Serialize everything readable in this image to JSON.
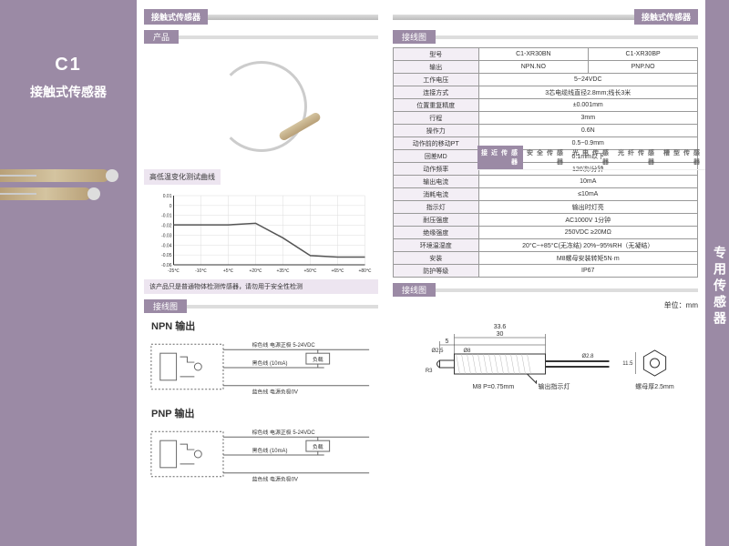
{
  "left": {
    "code": "C1",
    "title": "接触式传感器"
  },
  "side": {
    "tab_title": "专用传感器",
    "menu": [
      "槽型传感器",
      "光纤传感器",
      "光电传感器",
      "安全传感器",
      "接近传感器"
    ],
    "active": 4
  },
  "mid": {
    "pageHeader": "接触式传感器",
    "sections": {
      "product": "产品",
      "wiring": "接线图"
    },
    "chartCaption": "高低温变化测试曲线",
    "chart": {
      "x_ticks": [
        "-25℃",
        "-10℃",
        "+5℃",
        "+20℃",
        "+35℃",
        "+50℃",
        "+65℃",
        "+80℃"
      ],
      "y_ticks": [
        "0.01",
        "0",
        "-0.01",
        "-0.02",
        "-0.03",
        "-0.04",
        "-0.05",
        "-0.06"
      ],
      "line_color": "#555",
      "grid_color": "#ddd",
      "axis_color": "#333",
      "label_fontsize": 5,
      "points": [
        [
          0,
          38
        ],
        [
          30,
          38
        ],
        [
          60,
          38
        ],
        [
          90,
          36
        ],
        [
          120,
          55
        ],
        [
          150,
          78
        ],
        [
          180,
          80
        ],
        [
          210,
          80
        ]
      ]
    },
    "warning": "该产品只是普通物体检测传感器，请勿用于安全性检测",
    "npn": {
      "title": "NPN 输出",
      "labels": {
        "brown": "棕色线 电源正极 5-24VDC",
        "black": "黑色线 (10mA)",
        "load": "负载",
        "blue": "蓝色线 电源负极0V"
      }
    },
    "pnp": {
      "title": "PNP 输出",
      "labels": {
        "brown": "棕色线 电源正极 5-24VDC",
        "black": "黑色线 (10mA)",
        "load": "负载",
        "blue": "蓝色线 电源负极0V"
      }
    },
    "colors": {
      "purple": "#9b8aa5",
      "light_purple": "#ede5f0",
      "gray": "#999"
    }
  },
  "right": {
    "pageHeader": "接触式传感器",
    "sections": {
      "spec": "接线图",
      "dim": "接线图"
    },
    "spec_rows": [
      [
        "型号",
        "C1-XR30BN",
        "C1-XR30BP"
      ],
      [
        "输出",
        "NPN.NO",
        "PNP.NO"
      ],
      [
        "工作电压",
        "5~24VDC"
      ],
      [
        "连接方式",
        "3芯电缆线直径2.8mm;线长3米"
      ],
      [
        "位置重复精度",
        "±0.001mm"
      ],
      [
        "行程",
        "3mm"
      ],
      [
        "操作力",
        "0.6N"
      ],
      [
        "动作前的移动PT",
        "0.5~0.9mm"
      ],
      [
        "回差MD",
        "0.1mm以下"
      ],
      [
        "动作频率",
        "120次/分钟"
      ],
      [
        "输出电流",
        "10mA"
      ],
      [
        "消耗电流",
        "≤10mA"
      ],
      [
        "指示灯",
        "输出时灯亮"
      ],
      [
        "耐压强度",
        "AC1000V 1分钟"
      ],
      [
        "绝缘强度",
        "250VDC ≥20MΩ"
      ],
      [
        "环境温湿度",
        "20°C~+85°C(无冻结) 20%~95%RH（无凝结）"
      ],
      [
        "安装",
        "M8螺母安装转矩5N·m"
      ],
      [
        "防护等级",
        "IP67"
      ]
    ],
    "dim": {
      "unit": "单位：mm",
      "labels": {
        "total": "33.6",
        "body": "30",
        "tip": "5",
        "d_tip": "Ø2.5",
        "d_body": "Ø8",
        "d_cable": "Ø2.8",
        "thread": "M8 P=0.75mm",
        "led": "输出指示灯",
        "r": "R3",
        "nut_h": "11.5",
        "nut": "螺母厚2.5mm"
      },
      "line_color": "#333"
    }
  }
}
